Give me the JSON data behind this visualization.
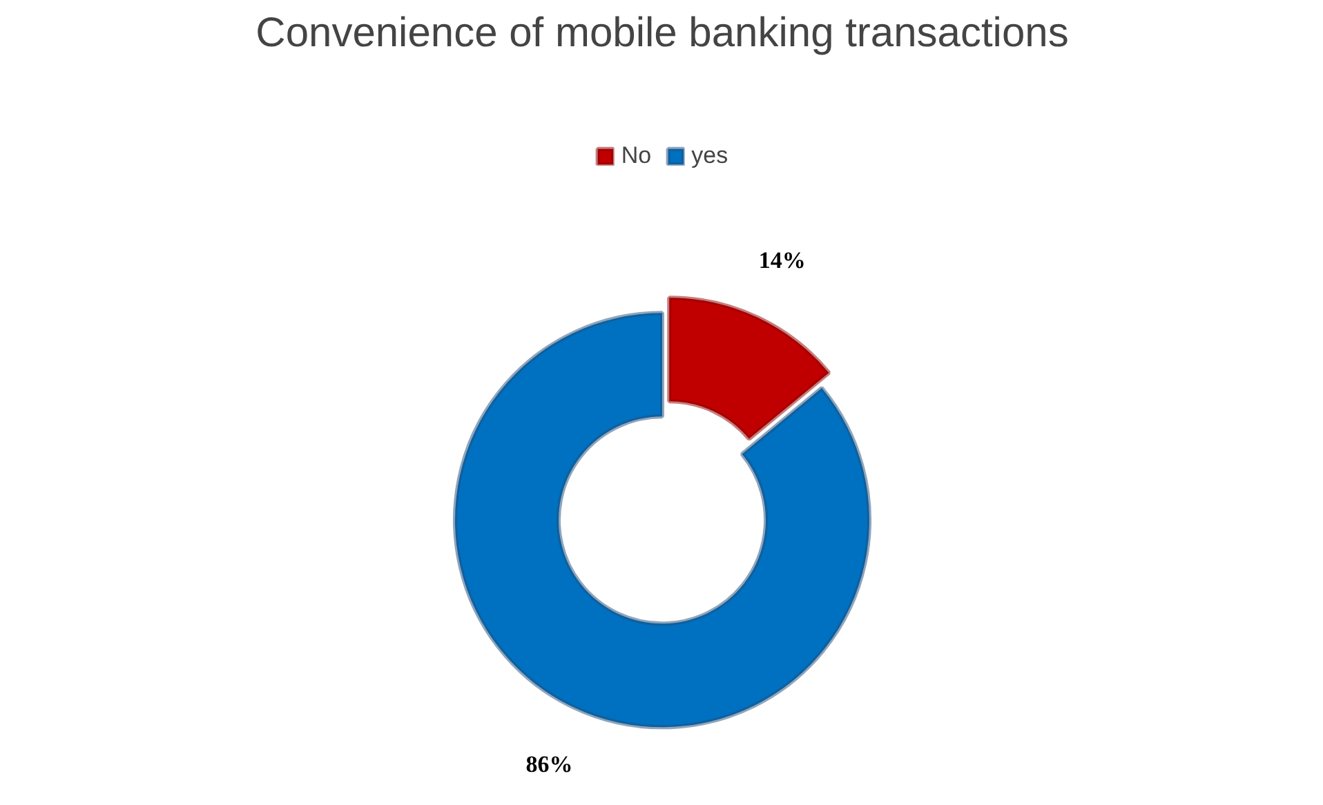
{
  "chart_data": {
    "type": "donut",
    "title": "Convenience of mobile banking transactions",
    "categories": [
      "No",
      "yes"
    ],
    "values": [
      14,
      86
    ],
    "colors": [
      "#c00000",
      "#0070c0"
    ],
    "value_labels": [
      "14%",
      "86%"
    ],
    "legend": "top"
  }
}
